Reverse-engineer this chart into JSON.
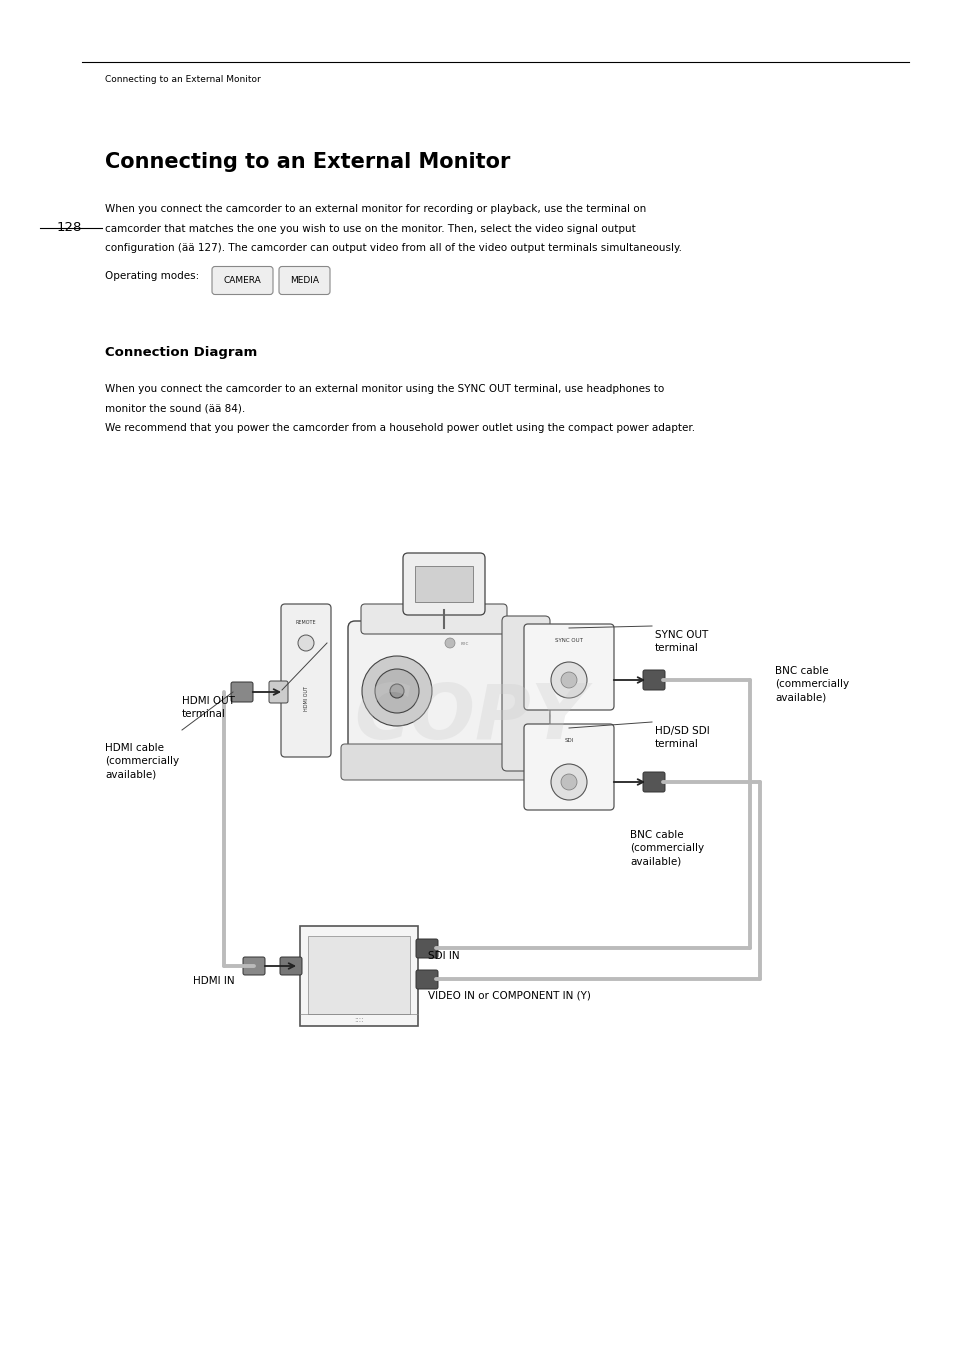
{
  "bg_color": "#ffffff",
  "page_width": 9.54,
  "page_height": 13.48,
  "breadcrumb": "Connecting to an External Monitor",
  "page_number": "128",
  "title": "Connecting to an External Monitor",
  "body1_line1": "When you connect the camcorder to an external monitor for recording or playback, use the terminal on",
  "body1_line2": "camcorder that matches the one you wish to use on the monitor. Then, select the video signal output",
  "body1_line3": "configuration (ää 127). The camcorder can output video from all of the video output terminals simultaneously.",
  "op_modes_label": "Operating modes:",
  "camera_btn": "CAMERA",
  "media_btn": "MEDIA",
  "section2_title": "Connection Diagram",
  "body2_line1": "When you connect the camcorder to an external monitor using the SYNC OUT terminal, use headphones to",
  "body2_line2": "monitor the sound (ää 84).",
  "body2_line3": "We recommend that you power the camcorder from a household power outlet using the compact power adapter.",
  "copy_watermark": "COPY",
  "label_sync_out": "SYNC OUT\nterminal",
  "label_bnc_top": "BNC cable\n(commercially\navailable)",
  "label_hd_sdi": "HD/SD SDI\nterminal",
  "label_bnc_bot": "BNC cable\n(commercially\navailable)",
  "label_hdmi_out": "HDMI OUT\nterminal",
  "label_hdmi_cable": "HDMI cable\n(commercially\navailable)",
  "label_hdmi_in": "HDMI IN",
  "label_sdi_in": "SDI IN",
  "label_video_in": "VIDEO IN or COMPONENT IN (Y)"
}
